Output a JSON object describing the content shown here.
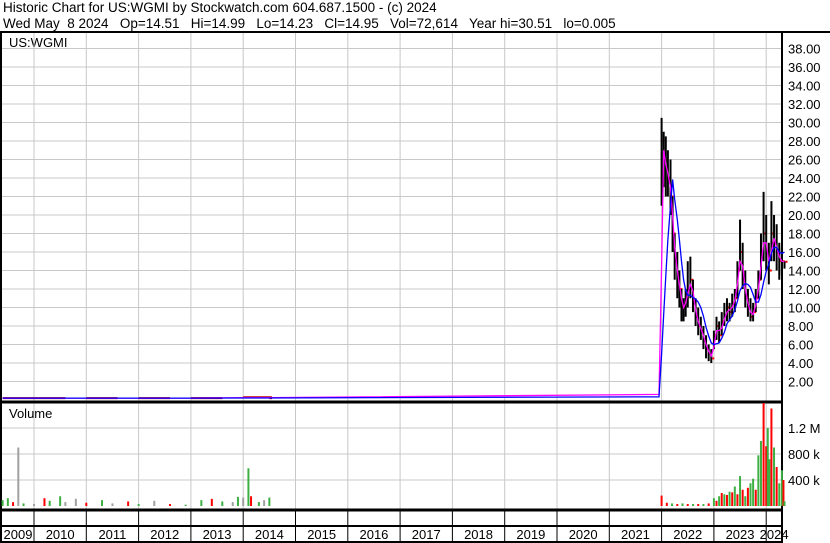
{
  "header": {
    "line1": "Historic Chart for US:WGMI by Stockwatch.com 604.687.1500 - (c) 2024",
    "line2": "Wed May  8 2024   Op=14.51   Hi=14.99   Lo=14.23   Cl=14.95   Vol=72,614   Year hi=30.51   lo=0.005"
  },
  "colors": {
    "bar": "#000000",
    "up": "#3cb043",
    "down": "#ff0000",
    "neutral": "#a0a0a0",
    "ma_short": "#ff00ff",
    "ma_long": "#0000ff",
    "grid": "#c8c8c8"
  },
  "chart_data": [
    {
      "type": "line",
      "title": "US:WGMI",
      "ylim": [
        0,
        39.5
      ],
      "grid": true,
      "yticks": [
        "2.00",
        "4.00",
        "6.00",
        "8.00",
        "10.00",
        "12.00",
        "14.00",
        "16.00",
        "18.00",
        "20.00",
        "22.00",
        "24.00",
        "26.00",
        "28.00",
        "30.00",
        "32.00",
        "34.00",
        "36.00",
        "38.00"
      ],
      "xticks": [
        "2009",
        "2010",
        "2011",
        "2012",
        "2013",
        "2014",
        "2015",
        "2016",
        "2017",
        "2018",
        "2019",
        "2020",
        "2021",
        "2022",
        "2023",
        "2024"
      ],
      "series": [
        {
          "fields": [
            "date",
            "high",
            "low",
            "close"
          ],
          "values": [
            [
              2009.4,
              0.3,
              0.1,
              0.2
            ],
            [
              2010.0,
              0.3,
              0.1,
              0.2
            ],
            [
              2011.0,
              0.3,
              0.1,
              0.2
            ],
            [
              2012.0,
              0.3,
              0.1,
              0.2
            ],
            [
              2013.0,
              0.3,
              0.1,
              0.2
            ],
            [
              2014.0,
              0.4,
              0.1,
              0.3
            ],
            [
              2014.5,
              0.3,
              0.1,
              0.2
            ],
            [
              2021.95,
              1.0,
              1.0,
              1.0
            ],
            [
              2022.0,
              30.5,
              21,
              28
            ],
            [
              2022.04,
              29,
              23,
              26
            ],
            [
              2022.08,
              28.5,
              22,
              25
            ],
            [
              2022.12,
              27,
              22,
              24
            ],
            [
              2022.17,
              26,
              20,
              22
            ],
            [
              2022.21,
              22,
              16,
              18
            ],
            [
              2022.25,
              18,
              13,
              15
            ],
            [
              2022.3,
              16,
              11,
              13
            ],
            [
              2022.34,
              14,
              10,
              12
            ],
            [
              2022.38,
              12,
              8.5,
              10
            ],
            [
              2022.42,
              11,
              8.5,
              10
            ],
            [
              2022.46,
              12,
              9,
              11
            ],
            [
              2022.5,
              15,
              10,
              12
            ],
            [
              2022.55,
              15.5,
              11,
              13
            ],
            [
              2022.6,
              13,
              9.5,
              10.5
            ],
            [
              2022.65,
              11,
              8,
              9
            ],
            [
              2022.7,
              10,
              7,
              8
            ],
            [
              2022.75,
              9,
              6.5,
              7.5
            ],
            [
              2022.8,
              8,
              5.5,
              6.5
            ],
            [
              2022.85,
              7,
              4.5,
              5.5
            ],
            [
              2022.9,
              6,
              4.2,
              5
            ],
            [
              2022.95,
              5.5,
              4,
              4.5
            ],
            [
              2023.0,
              7.5,
              5.5,
              7
            ],
            [
              2023.05,
              9,
              6.5,
              8
            ],
            [
              2023.1,
              8.5,
              6.2,
              7
            ],
            [
              2023.15,
              9.5,
              7,
              8.5
            ],
            [
              2023.2,
              10.5,
              8,
              9
            ],
            [
              2023.25,
              11,
              8.5,
              10
            ],
            [
              2023.3,
              10.5,
              8.5,
              9.5
            ],
            [
              2023.35,
              11.5,
              9,
              10.5
            ],
            [
              2023.4,
              12,
              9.5,
              11
            ],
            [
              2023.45,
              15,
              11,
              14
            ],
            [
              2023.5,
              19.5,
              14,
              16
            ],
            [
              2023.55,
              17,
              12,
              13
            ],
            [
              2023.6,
              14,
              10,
              11
            ],
            [
              2023.65,
              12,
              9,
              10
            ],
            [
              2023.7,
              11,
              8.5,
              9
            ],
            [
              2023.75,
              10.5,
              8.5,
              9.5
            ],
            [
              2023.8,
              12,
              9.5,
              11
            ],
            [
              2023.85,
              14,
              11,
              13
            ],
            [
              2023.9,
              18,
              13,
              16
            ],
            [
              2023.95,
              22.5,
              15,
              18
            ],
            [
              2024.0,
              20,
              14,
              16
            ],
            [
              2024.05,
              17,
              12.5,
              14
            ],
            [
              2024.1,
              21.5,
              15,
              18
            ],
            [
              2024.15,
              20,
              15,
              17
            ],
            [
              2024.2,
              19,
              14,
              16
            ],
            [
              2024.25,
              17,
              13,
              15
            ],
            [
              2024.3,
              16.5,
              13.5,
              15
            ],
            [
              2024.35,
              15,
              14.2,
              14.95
            ]
          ]
        }
      ]
    },
    {
      "type": "bar",
      "title": "Volume",
      "ylim": [
        0,
        1600000
      ],
      "yticks": [
        "400 k",
        "800 k",
        "1.2 M"
      ],
      "yvalues": [
        400000,
        800000,
        1200000
      ],
      "series": [
        {
          "fields": [
            "date",
            "volume",
            "direction"
          ],
          "values": [
            [
              2009.4,
              90000,
              "up"
            ],
            [
              2009.5,
              120000,
              "up"
            ],
            [
              2009.6,
              60000,
              "down"
            ],
            [
              2009.7,
              900000,
              "neutral"
            ],
            [
              2009.8,
              40000,
              "up"
            ],
            [
              2010.0,
              30000,
              "neutral"
            ],
            [
              2010.2,
              120000,
              "down"
            ],
            [
              2010.3,
              80000,
              "up"
            ],
            [
              2010.5,
              150000,
              "up"
            ],
            [
              2010.6,
              60000,
              "neutral"
            ],
            [
              2010.8,
              110000,
              "neutral"
            ],
            [
              2011.0,
              50000,
              "down"
            ],
            [
              2011.3,
              90000,
              "up"
            ],
            [
              2011.5,
              40000,
              "neutral"
            ],
            [
              2011.8,
              70000,
              "down"
            ],
            [
              2012.0,
              30000,
              "up"
            ],
            [
              2012.3,
              80000,
              "neutral"
            ],
            [
              2012.6,
              30000,
              "down"
            ],
            [
              2012.9,
              20000,
              "up"
            ],
            [
              2013.2,
              90000,
              "up"
            ],
            [
              2013.4,
              110000,
              "down"
            ],
            [
              2013.6,
              70000,
              "up"
            ],
            [
              2013.8,
              60000,
              "neutral"
            ],
            [
              2013.9,
              140000,
              "up"
            ],
            [
              2014.0,
              130000,
              "neutral"
            ],
            [
              2014.1,
              580000,
              "up"
            ],
            [
              2014.15,
              150000,
              "down"
            ],
            [
              2014.3,
              60000,
              "up"
            ],
            [
              2014.4,
              90000,
              "neutral"
            ],
            [
              2014.5,
              130000,
              "up"
            ],
            [
              2022.0,
              160000,
              "down"
            ],
            [
              2022.1,
              50000,
              "down"
            ],
            [
              2022.2,
              40000,
              "up"
            ],
            [
              2022.3,
              30000,
              "down"
            ],
            [
              2022.4,
              40000,
              "up"
            ],
            [
              2022.5,
              30000,
              "down"
            ],
            [
              2022.6,
              30000,
              "up"
            ],
            [
              2022.7,
              30000,
              "down"
            ],
            [
              2022.8,
              30000,
              "up"
            ],
            [
              2022.9,
              40000,
              "down"
            ],
            [
              2023.0,
              120000,
              "up"
            ],
            [
              2023.05,
              80000,
              "down"
            ],
            [
              2023.1,
              150000,
              "up"
            ],
            [
              2023.15,
              200000,
              "down"
            ],
            [
              2023.2,
              180000,
              "up"
            ],
            [
              2023.25,
              170000,
              "down"
            ],
            [
              2023.3,
              220000,
              "up"
            ],
            [
              2023.35,
              210000,
              "down"
            ],
            [
              2023.4,
              300000,
              "up"
            ],
            [
              2023.45,
              180000,
              "down"
            ],
            [
              2023.5,
              460000,
              "up"
            ],
            [
              2023.55,
              250000,
              "down"
            ],
            [
              2023.6,
              150000,
              "up"
            ],
            [
              2023.65,
              280000,
              "down"
            ],
            [
              2023.7,
              350000,
              "up"
            ],
            [
              2023.75,
              420000,
              "up"
            ],
            [
              2023.8,
              250000,
              "down"
            ],
            [
              2023.85,
              780000,
              "up"
            ],
            [
              2023.9,
              1000000,
              "up"
            ],
            [
              2023.95,
              1600000,
              "down"
            ],
            [
              2024.0,
              920000,
              "down"
            ],
            [
              2024.03,
              1200000,
              "up"
            ],
            [
              2024.06,
              720000,
              "up"
            ],
            [
              2024.1,
              1500000,
              "down"
            ],
            [
              2024.15,
              900000,
              "up"
            ],
            [
              2024.2,
              600000,
              "down"
            ],
            [
              2024.25,
              350000,
              "up"
            ],
            [
              2024.3,
              550000,
              "up"
            ],
            [
              2024.33,
              400000,
              "down"
            ],
            [
              2024.35,
              72614,
              "up"
            ]
          ]
        }
      ]
    }
  ]
}
